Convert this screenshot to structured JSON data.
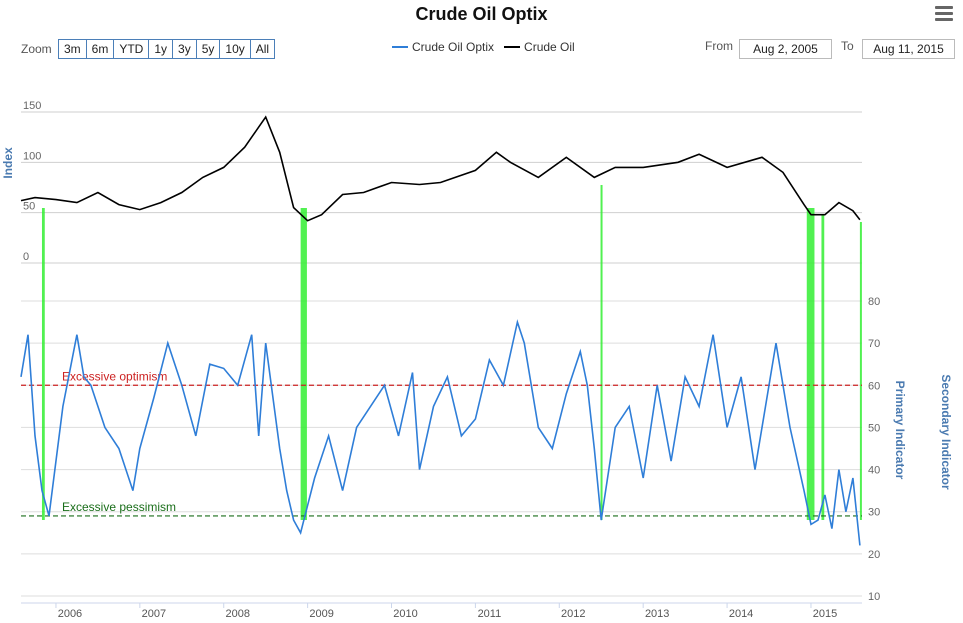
{
  "header": {
    "title": "Crude Oil Optix"
  },
  "toolbar": {
    "zoom_label": "Zoom",
    "zoom_buttons": [
      "3m",
      "6m",
      "YTD",
      "1y",
      "3y",
      "5y",
      "10y",
      "All"
    ],
    "from_label": "From",
    "from_value": "Aug 2, 2005",
    "to_label": "To",
    "to_value": "Aug 11, 2015"
  },
  "colors": {
    "optix": "#2f7ed8",
    "oil": "#000000",
    "highlight": "#33ee33",
    "optimism": "#cc2222",
    "pessimism": "#1a6e1a"
  },
  "chart_data": {
    "type": "line",
    "title": "Crude Oil Optix",
    "x_labels": [
      "2006",
      "2007",
      "2008",
      "2009",
      "2010",
      "2011",
      "2012",
      "2013",
      "2014",
      "2015"
    ],
    "legend": [
      "Crude Oil Optix",
      "Crude Oil"
    ],
    "upper_panel": {
      "ylabel": "Index",
      "ytick_labels": [
        "0",
        "50",
        "100",
        "150"
      ],
      "ylim": [
        0,
        150
      ],
      "series": [
        {
          "name": "Crude Oil",
          "x": [
            "2005-08",
            "2005-10",
            "2006-01",
            "2006-04",
            "2006-07",
            "2006-10",
            "2007-01",
            "2007-04",
            "2007-07",
            "2007-10",
            "2008-01",
            "2008-04",
            "2008-06",
            "2008-07",
            "2008-09",
            "2008-11",
            "2009-01",
            "2009-03",
            "2009-06",
            "2009-09",
            "2010-01",
            "2010-05",
            "2010-08",
            "2011-01",
            "2011-04",
            "2011-06",
            "2011-10",
            "2012-02",
            "2012-06",
            "2012-09",
            "2013-01",
            "2013-06",
            "2013-09",
            "2014-01",
            "2014-06",
            "2014-09",
            "2014-12",
            "2015-01",
            "2015-03",
            "2015-05",
            "2015-07",
            "2015-08"
          ],
          "values": [
            62,
            65,
            63,
            60,
            70,
            58,
            53,
            60,
            70,
            85,
            95,
            115,
            135,
            145,
            110,
            55,
            42,
            48,
            68,
            70,
            80,
            78,
            80,
            92,
            110,
            100,
            85,
            105,
            85,
            95,
            95,
            100,
            108,
            95,
            105,
            90,
            58,
            48,
            48,
            60,
            52,
            43
          ]
        }
      ]
    },
    "lower_panel": {
      "left_axis": {
        "label": "Primary Indicator",
        "ytick_labels": [
          "10",
          "20",
          "30",
          "40",
          "50",
          "60",
          "70",
          "80"
        ],
        "ylim": [
          10,
          90
        ]
      },
      "right_axis_label": "Secondary Indicator",
      "reference_lines": [
        {
          "label": "Excessive optimism",
          "value": 60
        },
        {
          "label": "Excessive pessimism",
          "value": 29
        }
      ],
      "series": [
        {
          "name": "Crude Oil Optix",
          "x": [
            "2005-08",
            "2005-09",
            "2005-10",
            "2005-11",
            "2005-12",
            "2006-02",
            "2006-04",
            "2006-05",
            "2006-06",
            "2006-08",
            "2006-10",
            "2006-12",
            "2007-01",
            "2007-03",
            "2007-05",
            "2007-07",
            "2007-09",
            "2007-11",
            "2008-01",
            "2008-03",
            "2008-05",
            "2008-06",
            "2008-07",
            "2008-09",
            "2008-10",
            "2008-11",
            "2008-12",
            "2009-02",
            "2009-04",
            "2009-06",
            "2009-08",
            "2009-10",
            "2009-12",
            "2010-02",
            "2010-04",
            "2010-05",
            "2010-07",
            "2010-09",
            "2010-11",
            "2011-01",
            "2011-03",
            "2011-05",
            "2011-07",
            "2011-08",
            "2011-10",
            "2011-12",
            "2012-02",
            "2012-04",
            "2012-05",
            "2012-06",
            "2012-07",
            "2012-09",
            "2012-11",
            "2013-01",
            "2013-03",
            "2013-05",
            "2013-07",
            "2013-09",
            "2013-11",
            "2014-01",
            "2014-03",
            "2014-05",
            "2014-07",
            "2014-08",
            "2014-10",
            "2014-12",
            "2015-01",
            "2015-02",
            "2015-03",
            "2015-04",
            "2015-05",
            "2015-06",
            "2015-07",
            "2015-08"
          ],
          "values": [
            62,
            72,
            48,
            35,
            29,
            55,
            72,
            62,
            60,
            50,
            45,
            35,
            45,
            57,
            70,
            60,
            48,
            65,
            64,
            60,
            72,
            48,
            70,
            45,
            35,
            28,
            25,
            38,
            48,
            35,
            50,
            55,
            60,
            48,
            63,
            40,
            55,
            62,
            48,
            52,
            66,
            60,
            75,
            70,
            50,
            45,
            58,
            68,
            60,
            45,
            28,
            50,
            55,
            38,
            60,
            42,
            62,
            55,
            72,
            50,
            62,
            40,
            60,
            70,
            50,
            35,
            27,
            28,
            34,
            26,
            40,
            30,
            38,
            22
          ]
        }
      ]
    }
  }
}
